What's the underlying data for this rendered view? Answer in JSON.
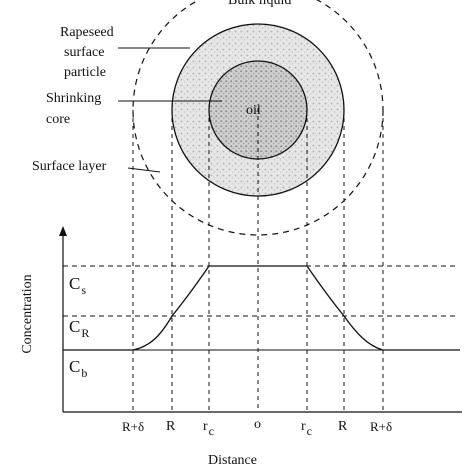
{
  "labels": {
    "bulk_liquid": "Bulk liquid",
    "rapeseed_line1": "Rapeseed",
    "rapeseed_line2": "surface",
    "rapeseed_line3": "particle",
    "shrinking_line1": "Shrinking",
    "shrinking_line2": "core",
    "oil": "oil",
    "surface_layer": "Surface layer"
  },
  "plot": {
    "ylabel": "Concentration",
    "xlabel": "Distance",
    "levels": [
      {
        "symbol": "C",
        "sub": "s"
      },
      {
        "symbol": "C",
        "sub": "R"
      },
      {
        "symbol": "C",
        "sub": "b"
      }
    ],
    "xticks": [
      {
        "text": "R+δ"
      },
      {
        "text": "R"
      },
      {
        "text": "r",
        "sub": "c"
      },
      {
        "text": "o"
      },
      {
        "text": "r",
        "sub": "c"
      },
      {
        "text": "R"
      },
      {
        "text": "R+δ"
      }
    ]
  },
  "colors": {
    "ink": "#111111",
    "stipple": "#b8b8b8",
    "stipple_dark": "#8a8a8a"
  }
}
